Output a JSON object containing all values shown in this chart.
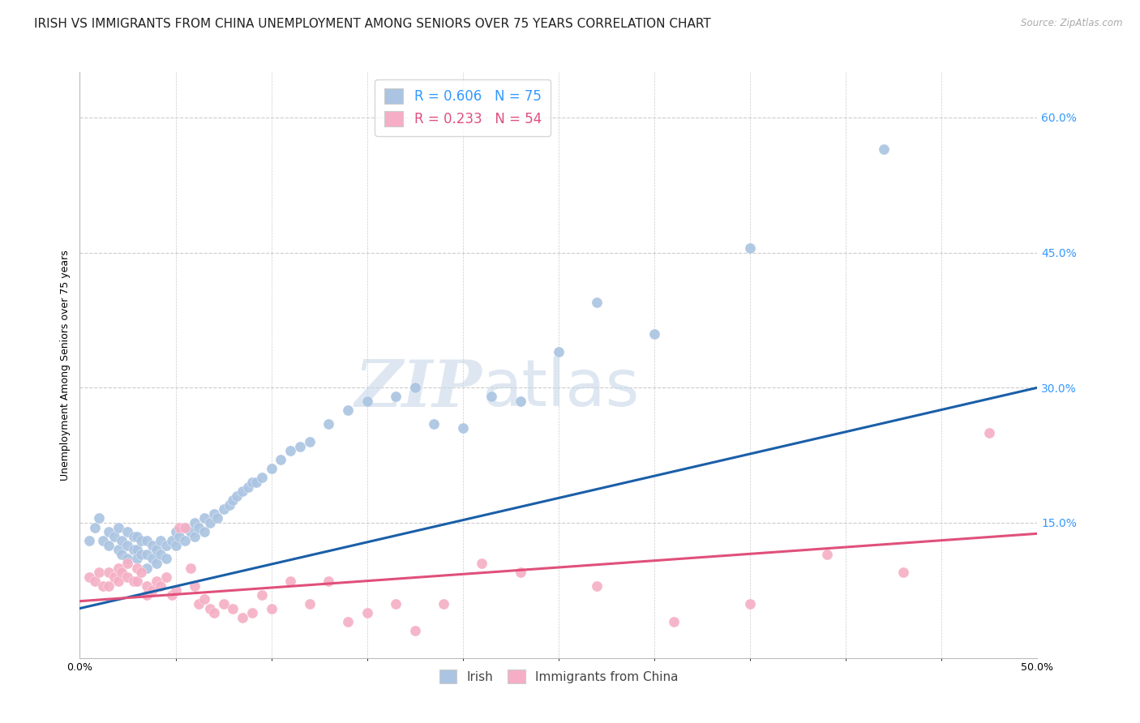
{
  "title": "IRISH VS IMMIGRANTS FROM CHINA UNEMPLOYMENT AMONG SENIORS OVER 75 YEARS CORRELATION CHART",
  "source": "Source: ZipAtlas.com",
  "ylabel": "Unemployment Among Seniors over 75 years",
  "xlim": [
    0.0,
    0.5
  ],
  "ylim": [
    0.0,
    0.65
  ],
  "xtick_positions": [
    0.0,
    0.5
  ],
  "xticklabels": [
    "0.0%",
    "50.0%"
  ],
  "xtick_minor_positions": [
    0.05,
    0.1,
    0.15,
    0.2,
    0.25,
    0.3,
    0.35,
    0.4,
    0.45
  ],
  "yticks_right": [
    0.15,
    0.3,
    0.45,
    0.6
  ],
  "ytick_right_labels": [
    "15.0%",
    "30.0%",
    "45.0%",
    "60.0%"
  ],
  "legend_irish_R": "0.606",
  "legend_irish_N": "75",
  "legend_china_R": "0.233",
  "legend_china_N": "54",
  "irish_color": "#aac4e2",
  "china_color": "#f5aec5",
  "irish_line_color": "#1a5fa8",
  "china_line_color": "#e0507a",
  "watermark_zip": "ZIP",
  "watermark_atlas": "atlas",
  "irish_scatter_x": [
    0.005,
    0.008,
    0.01,
    0.012,
    0.015,
    0.015,
    0.018,
    0.02,
    0.02,
    0.022,
    0.022,
    0.025,
    0.025,
    0.025,
    0.028,
    0.028,
    0.03,
    0.03,
    0.03,
    0.032,
    0.032,
    0.035,
    0.035,
    0.035,
    0.038,
    0.038,
    0.04,
    0.04,
    0.042,
    0.042,
    0.045,
    0.045,
    0.048,
    0.05,
    0.05,
    0.052,
    0.055,
    0.055,
    0.058,
    0.06,
    0.06,
    0.062,
    0.065,
    0.065,
    0.068,
    0.07,
    0.072,
    0.075,
    0.078,
    0.08,
    0.082,
    0.085,
    0.088,
    0.09,
    0.092,
    0.095,
    0.1,
    0.105,
    0.11,
    0.115,
    0.12,
    0.13,
    0.14,
    0.15,
    0.165,
    0.175,
    0.185,
    0.2,
    0.215,
    0.23,
    0.25,
    0.27,
    0.3,
    0.35,
    0.42
  ],
  "irish_scatter_y": [
    0.13,
    0.145,
    0.155,
    0.13,
    0.14,
    0.125,
    0.135,
    0.145,
    0.12,
    0.13,
    0.115,
    0.14,
    0.125,
    0.11,
    0.135,
    0.12,
    0.135,
    0.12,
    0.11,
    0.13,
    0.115,
    0.13,
    0.115,
    0.1,
    0.125,
    0.11,
    0.12,
    0.105,
    0.13,
    0.115,
    0.125,
    0.11,
    0.13,
    0.14,
    0.125,
    0.135,
    0.145,
    0.13,
    0.14,
    0.15,
    0.135,
    0.145,
    0.155,
    0.14,
    0.15,
    0.16,
    0.155,
    0.165,
    0.17,
    0.175,
    0.18,
    0.185,
    0.19,
    0.195,
    0.195,
    0.2,
    0.21,
    0.22,
    0.23,
    0.235,
    0.24,
    0.26,
    0.275,
    0.285,
    0.29,
    0.3,
    0.26,
    0.255,
    0.29,
    0.285,
    0.34,
    0.395,
    0.36,
    0.455,
    0.565
  ],
  "china_scatter_x": [
    0.005,
    0.008,
    0.01,
    0.012,
    0.015,
    0.015,
    0.018,
    0.02,
    0.02,
    0.022,
    0.025,
    0.025,
    0.028,
    0.03,
    0.03,
    0.032,
    0.035,
    0.035,
    0.038,
    0.04,
    0.042,
    0.045,
    0.048,
    0.05,
    0.052,
    0.055,
    0.058,
    0.06,
    0.062,
    0.065,
    0.068,
    0.07,
    0.075,
    0.08,
    0.085,
    0.09,
    0.095,
    0.1,
    0.11,
    0.12,
    0.13,
    0.14,
    0.15,
    0.165,
    0.175,
    0.19,
    0.21,
    0.23,
    0.27,
    0.31,
    0.35,
    0.39,
    0.43,
    0.475
  ],
  "china_scatter_y": [
    0.09,
    0.085,
    0.095,
    0.08,
    0.095,
    0.08,
    0.09,
    0.1,
    0.085,
    0.095,
    0.105,
    0.09,
    0.085,
    0.1,
    0.085,
    0.095,
    0.08,
    0.07,
    0.075,
    0.085,
    0.08,
    0.09,
    0.07,
    0.075,
    0.145,
    0.145,
    0.1,
    0.08,
    0.06,
    0.065,
    0.055,
    0.05,
    0.06,
    0.055,
    0.045,
    0.05,
    0.07,
    0.055,
    0.085,
    0.06,
    0.085,
    0.04,
    0.05,
    0.06,
    0.03,
    0.06,
    0.105,
    0.095,
    0.08,
    0.04,
    0.06,
    0.115,
    0.095,
    0.25
  ],
  "irish_trend_x": [
    0.0,
    0.5
  ],
  "irish_trend_y": [
    0.055,
    0.3
  ],
  "china_trend_x": [
    0.0,
    0.5
  ],
  "china_trend_y": [
    0.063,
    0.138
  ],
  "background_color": "#ffffff",
  "grid_color": "#cccccc",
  "title_fontsize": 11,
  "axis_label_fontsize": 9,
  "tick_fontsize": 9
}
